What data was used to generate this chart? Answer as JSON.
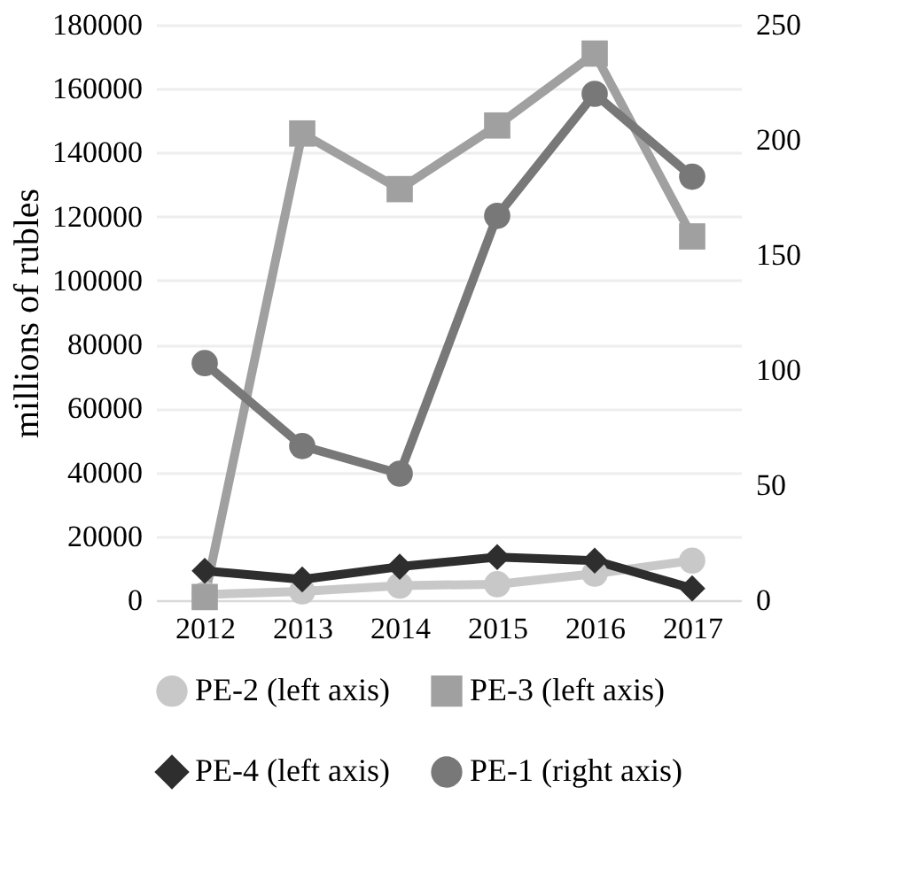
{
  "chart_data": {
    "type": "line",
    "ylabel": "millions of rubles",
    "categories": [
      "2012",
      "2013",
      "2014",
      "2015",
      "2016",
      "2017"
    ],
    "series": [
      {
        "name": "PE-2 (left axis)",
        "color": "#c8c8c8",
        "marker": "circle",
        "values": [
          1800,
          2800,
          4600,
          5000,
          8300,
          12400
        ]
      },
      {
        "name": "PE-3 (left axis)",
        "color": "#a0a0a0",
        "marker": "square",
        "values": [
          1000,
          146000,
          128600,
          148500,
          171000,
          113800
        ]
      },
      {
        "name": "PE-4 (left axis)",
        "color": "#2e2e2e",
        "marker": "diamond",
        "values": [
          9200,
          6500,
          10500,
          13500,
          12400,
          3700
        ]
      },
      {
        "name": "PE-1 (right axis)",
        "color": "#787878",
        "marker": "circle",
        "axis": "y2",
        "values": [
          103,
          67,
          55,
          167,
          220,
          184
        ]
      }
    ],
    "ylim": [
      0,
      180000
    ],
    "yticks": [
      0,
      20000,
      40000,
      60000,
      80000,
      100000,
      120000,
      140000,
      160000,
      180000
    ],
    "y2lim": [
      0,
      250
    ],
    "y2ticks": [
      0,
      50,
      100,
      150,
      200,
      250
    ],
    "grid": "y",
    "legend": "bottom",
    "line_style": "solid"
  }
}
